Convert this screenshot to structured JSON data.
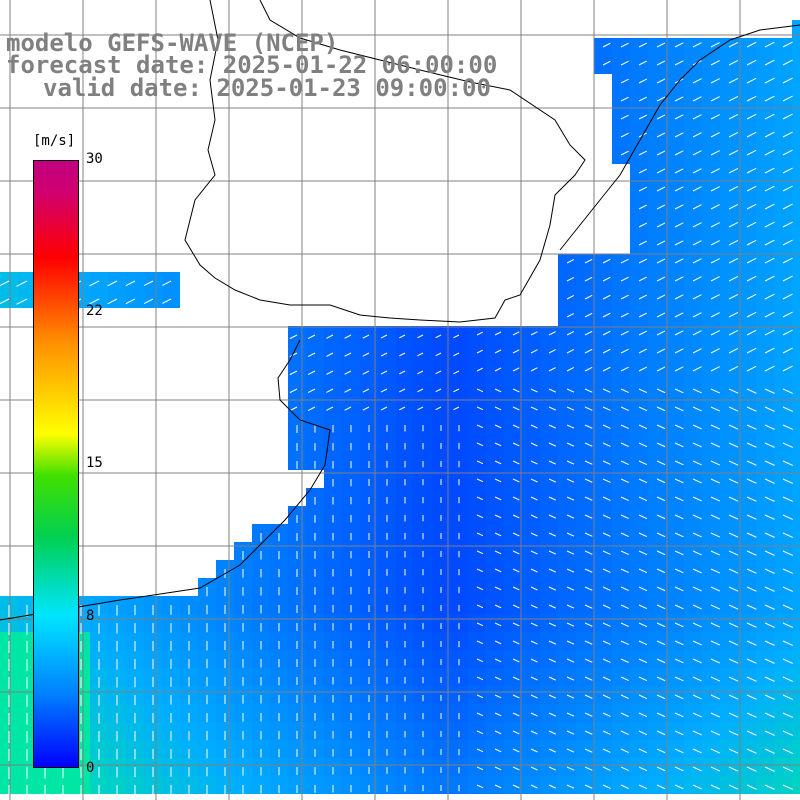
{
  "title": {
    "line1": "modelo GEFS-WAVE (NCEP)",
    "line2": "forecast date: 2025-01-22 06:00:00",
    "line3": "valid date: 2025-01-23 09:00:00"
  },
  "colorbar": {
    "unit": "[m/s]",
    "ticks": [
      "30",
      "22",
      "15",
      "8",
      "0"
    ],
    "colors": [
      "#0000ff",
      "#0080ff",
      "#00e5ff",
      "#00d050",
      "#ffff00",
      "#ff9000",
      "#ff0000",
      "#c00080"
    ]
  },
  "colors": {
    "land": "#ffffff",
    "coast": "#000000",
    "grid": "#808080",
    "arrow": "#ffffff"
  }
}
